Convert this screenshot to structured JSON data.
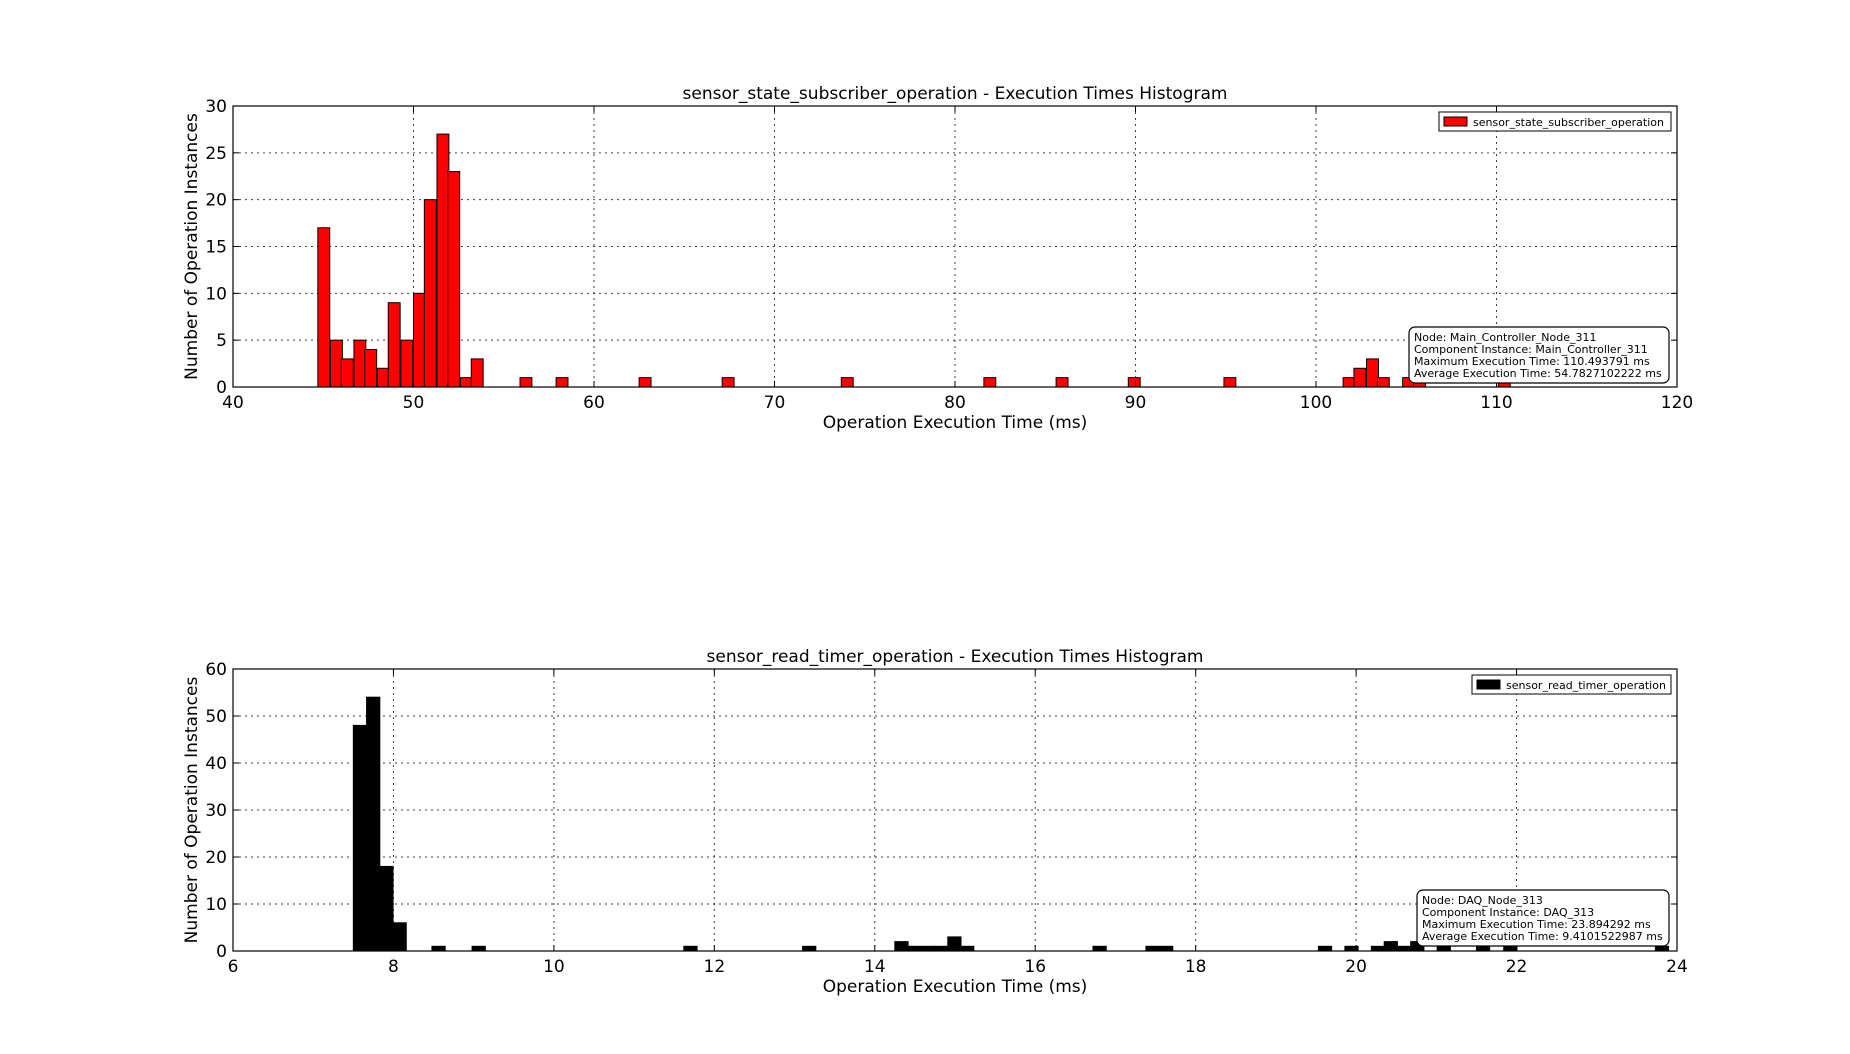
{
  "chart_data": [
    {
      "type": "bar",
      "title": "sensor_state_subscriber_operation - Execution Times Histogram",
      "xlabel": "Operation Execution Time (ms)",
      "ylabel": "Number of Operation Instances",
      "xlim": [
        40,
        120
      ],
      "ylim": [
        0,
        30
      ],
      "xticks": [
        40,
        50,
        60,
        70,
        80,
        90,
        100,
        110,
        120
      ],
      "yticks": [
        0,
        5,
        10,
        15,
        20,
        25,
        30
      ],
      "grid": true,
      "legend_position": "top-right",
      "bin_width": 0.66,
      "series": [
        {
          "name": "sensor_state_subscriber_operation",
          "color": "#ff0000",
          "bins": [
            {
              "x": 44.7,
              "count": 17
            },
            {
              "x": 45.4,
              "count": 5
            },
            {
              "x": 46.0,
              "count": 3
            },
            {
              "x": 46.7,
              "count": 5
            },
            {
              "x": 47.3,
              "count": 4
            },
            {
              "x": 48.0,
              "count": 2
            },
            {
              "x": 48.6,
              "count": 9
            },
            {
              "x": 49.3,
              "count": 5
            },
            {
              "x": 50.0,
              "count": 10
            },
            {
              "x": 50.6,
              "count": 20
            },
            {
              "x": 51.3,
              "count": 27
            },
            {
              "x": 51.9,
              "count": 23
            },
            {
              "x": 52.6,
              "count": 1
            },
            {
              "x": 53.2,
              "count": 3
            },
            {
              "x": 55.9,
              "count": 1
            },
            {
              "x": 57.9,
              "count": 1
            },
            {
              "x": 62.5,
              "count": 1
            },
            {
              "x": 67.1,
              "count": 1
            },
            {
              "x": 73.7,
              "count": 1
            },
            {
              "x": 81.6,
              "count": 1
            },
            {
              "x": 85.6,
              "count": 1
            },
            {
              "x": 89.6,
              "count": 1
            },
            {
              "x": 94.9,
              "count": 1
            },
            {
              "x": 101.5,
              "count": 1
            },
            {
              "x": 102.1,
              "count": 2
            },
            {
              "x": 102.8,
              "count": 3
            },
            {
              "x": 103.4,
              "count": 1
            },
            {
              "x": 104.8,
              "count": 1
            },
            {
              "x": 105.4,
              "count": 1
            },
            {
              "x": 110.1,
              "count": 1
            }
          ]
        }
      ],
      "info_box": [
        "Node: Main_Controller_Node_311",
        "Component Instance: Main_Controller_311",
        "Maximum Execution Time: 110.493791 ms",
        "Average Execution Time: 54.7827102222 ms"
      ]
    },
    {
      "type": "bar",
      "title": "sensor_read_timer_operation - Execution Times Histogram",
      "xlabel": "Operation Execution Time (ms)",
      "ylabel": "Number of Operation Instances",
      "xlim": [
        6,
        24
      ],
      "ylim": [
        0,
        60
      ],
      "xticks": [
        6,
        8,
        10,
        12,
        14,
        16,
        18,
        20,
        22,
        24
      ],
      "yticks": [
        0,
        10,
        20,
        30,
        40,
        50,
        60
      ],
      "grid": true,
      "legend_position": "top-right",
      "bin_width": 0.165,
      "series": [
        {
          "name": "sensor_read_timer_operation",
          "color": "#000000",
          "bins": [
            {
              "x": 7.5,
              "count": 48
            },
            {
              "x": 7.665,
              "count": 54
            },
            {
              "x": 7.83,
              "count": 18
            },
            {
              "x": 7.995,
              "count": 6
            },
            {
              "x": 8.48,
              "count": 1
            },
            {
              "x": 8.98,
              "count": 1
            },
            {
              "x": 11.62,
              "count": 1
            },
            {
              "x": 13.1,
              "count": 1
            },
            {
              "x": 14.25,
              "count": 2
            },
            {
              "x": 14.41,
              "count": 1
            },
            {
              "x": 14.58,
              "count": 1
            },
            {
              "x": 14.74,
              "count": 1
            },
            {
              "x": 14.91,
              "count": 3
            },
            {
              "x": 15.07,
              "count": 1
            },
            {
              "x": 16.72,
              "count": 1
            },
            {
              "x": 17.38,
              "count": 1
            },
            {
              "x": 17.55,
              "count": 1
            },
            {
              "x": 19.53,
              "count": 1
            },
            {
              "x": 19.86,
              "count": 1
            },
            {
              "x": 20.19,
              "count": 1
            },
            {
              "x": 20.35,
              "count": 2
            },
            {
              "x": 20.52,
              "count": 1
            },
            {
              "x": 20.68,
              "count": 2
            },
            {
              "x": 21.01,
              "count": 1
            },
            {
              "x": 21.5,
              "count": 1
            },
            {
              "x": 21.84,
              "count": 1
            },
            {
              "x": 23.73,
              "count": 1
            }
          ]
        }
      ],
      "info_box": [
        "Node: DAQ_Node_313",
        "Component Instance: DAQ_313",
        "Maximum Execution Time: 23.894292 ms",
        "Average Execution Time: 9.4101522987 ms"
      ]
    }
  ]
}
